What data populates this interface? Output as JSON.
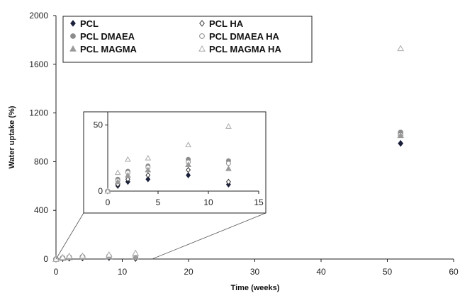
{
  "chart_data": {
    "type": "scatter",
    "xlabel": "Time (weeks)",
    "ylabel": "Water uptake (%)",
    "xlim": [
      0,
      60
    ],
    "ylim": [
      0,
      2000
    ],
    "xticks": [
      "0",
      "10",
      "20",
      "30",
      "40",
      "50",
      "60"
    ],
    "yticks": [
      "0",
      "400",
      "800",
      "1200",
      "1600",
      "2000"
    ],
    "grid": false,
    "legend_position": "top-left",
    "series": [
      {
        "name": "PCL",
        "marker": "filled-diamond",
        "color": "#1a1f3a",
        "x": [
          0,
          1,
          2,
          4,
          8,
          12,
          52
        ],
        "y": [
          0,
          4,
          7,
          9,
          12,
          5,
          950
        ]
      },
      {
        "name": "PCL HA",
        "marker": "open-diamond",
        "color": "#333333",
        "x": [
          0,
          1,
          2,
          4,
          8,
          12,
          52
        ],
        "y": [
          0,
          5,
          9,
          12,
          16,
          7,
          1030
        ]
      },
      {
        "name": "PCL DMAEA",
        "marker": "filled-circle",
        "color": "#8c8c8c",
        "x": [
          0,
          1,
          2,
          4,
          8,
          12,
          52
        ],
        "y": [
          0,
          9,
          15,
          19,
          24,
          23,
          1040
        ]
      },
      {
        "name": "PCL DMAEA HA",
        "marker": "open-circle",
        "color": "#8c8c8c",
        "x": [
          0,
          1,
          2,
          4,
          8,
          12,
          52
        ],
        "y": [
          0,
          8,
          14,
          18,
          22,
          21,
          1020
        ]
      },
      {
        "name": "PCL MAGMA",
        "marker": "filled-triangle",
        "color": "#9a9a9a",
        "x": [
          0,
          1,
          2,
          4,
          8,
          12,
          52
        ],
        "y": [
          0,
          7,
          12,
          16,
          20,
          17,
          1015
        ]
      },
      {
        "name": "PCL MAGMA HA",
        "marker": "open-triangle",
        "color": "#aaaaaa",
        "x": [
          0,
          1,
          2,
          4,
          8,
          12,
          52
        ],
        "y": [
          0,
          14,
          24,
          25,
          35,
          49,
          1730
        ]
      }
    ],
    "inset": {
      "xlim": [
        0,
        15
      ],
      "ylim": [
        0,
        60
      ],
      "xticks": [
        "0",
        "5",
        "10",
        "15"
      ],
      "yticks": [
        "0",
        "50"
      ]
    }
  }
}
